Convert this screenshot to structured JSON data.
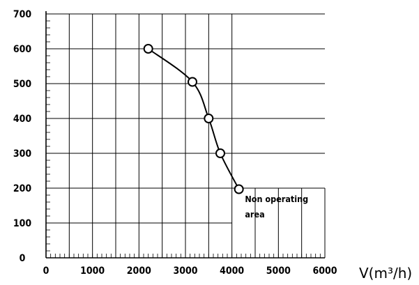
{
  "chart_data": {
    "type": "line",
    "title": "",
    "xlabel": "V(m³/h)",
    "ylabel": "",
    "xlim": [
      0,
      6000
    ],
    "ylim": [
      0,
      700
    ],
    "x_ticks": [
      "0",
      "1000",
      "2000",
      "3000",
      "4000",
      "5000",
      "6000"
    ],
    "y_ticks": [
      "0",
      "100",
      "200",
      "300",
      "400",
      "500",
      "600",
      "700"
    ],
    "grid": true,
    "series": [
      {
        "x": [
          2200,
          3150,
          3500,
          3750,
          4150
        ],
        "y": [
          600,
          505,
          400,
          300,
          197
        ]
      }
    ],
    "annotations": [
      {
        "lines": [
          "Non operating",
          "area"
        ],
        "x": 4280,
        "y": 160
      }
    ]
  }
}
